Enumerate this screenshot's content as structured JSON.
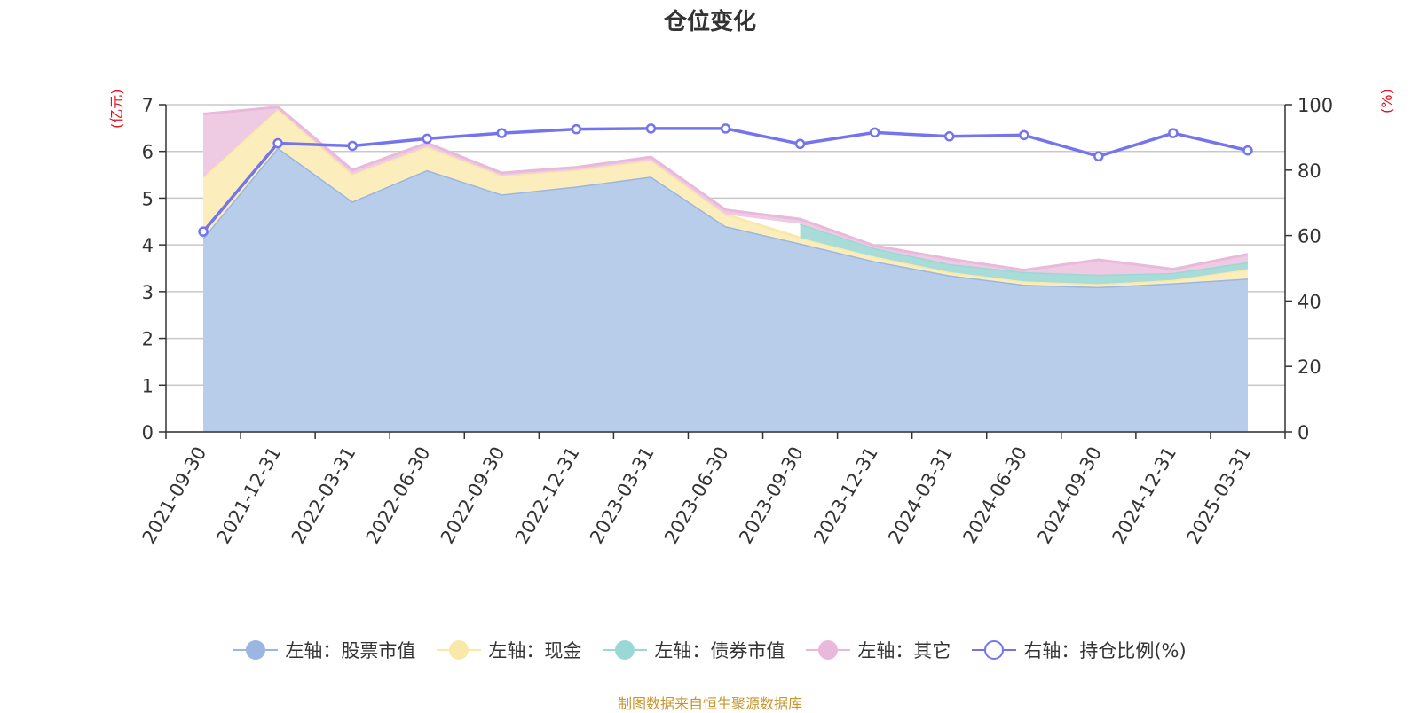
{
  "title": "仓位变化",
  "left_axis_unit": "(亿元)",
  "right_axis_unit": "(%)",
  "source_text": "制图数据来自恒生聚源数据库",
  "legend": [
    {
      "label": "左轴：股票市值",
      "color": "#9bb6e0",
      "marker": "filled-circle"
    },
    {
      "label": "左轴：现金",
      "color": "#fae8a8",
      "marker": "filled-circle"
    },
    {
      "label": "左轴：债券市值",
      "color": "#9ad8d6",
      "marker": "filled-circle"
    },
    {
      "label": "左轴：其它",
      "color": "#e9b9dc",
      "marker": "filled-circle"
    },
    {
      "label": "右轴：持仓比例(%)",
      "color": "#7474ee",
      "marker": "hollow-circle"
    }
  ],
  "chart_data": {
    "type": "area",
    "x": [
      "2021-09-30",
      "2021-12-31",
      "2022-03-31",
      "2022-06-30",
      "2022-09-30",
      "2022-12-31",
      "2023-03-31",
      "2023-06-30",
      "2023-09-30",
      "2023-12-31",
      "2024-03-31",
      "2024-06-30",
      "2024-09-30",
      "2024-12-31",
      "2025-03-31"
    ],
    "left_axis": {
      "ticks": [
        0,
        1,
        2,
        3,
        4,
        5,
        6,
        7
      ],
      "ylim": [
        0,
        7
      ]
    },
    "right_axis": {
      "ticks": [
        0,
        20,
        40,
        60,
        80,
        100
      ],
      "ylim": [
        0,
        100
      ]
    },
    "stacked_series": [
      {
        "name": "左轴：股票市值",
        "color": "#9bb6e0",
        "fill": "#b7cdea",
        "values": [
          4.15,
          6.08,
          4.93,
          5.6,
          5.08,
          5.25,
          5.46,
          4.4,
          4.03,
          3.65,
          3.35,
          3.15,
          3.1,
          3.18,
          3.28
        ]
      },
      {
        "name": "左轴：现金",
        "color": "#fae8a8",
        "fill": "#fcedbd",
        "values": [
          1.3,
          0.82,
          0.58,
          0.5,
          0.4,
          0.35,
          0.35,
          0.25,
          0.12,
          0.1,
          0.07,
          0.07,
          0.06,
          0.07,
          0.2
        ]
      },
      {
        "name": "左轴：债券市值",
        "color": "#9ad8d6",
        "fill": "#a8dcd8",
        "values": [
          null,
          null,
          null,
          null,
          null,
          null,
          null,
          null,
          0.3,
          0.18,
          0.17,
          0.2,
          0.2,
          0.15,
          0.15
        ]
      },
      {
        "name": "左轴：其它",
        "color": "#e9b9dc",
        "fill": "#eecbe3",
        "values": [
          1.35,
          0.05,
          0.09,
          0.08,
          0.06,
          0.06,
          0.07,
          0.1,
          0.1,
          0.05,
          0.11,
          0.04,
          0.32,
          0.08,
          0.17
        ]
      }
    ],
    "line_series": [
      {
        "name": "右轴：持仓比例(%)",
        "color": "#7474ee",
        "axis": "right",
        "values": [
          61.2,
          88.2,
          87.4,
          89.6,
          91.3,
          92.5,
          92.7,
          92.7,
          88.0,
          91.5,
          90.3,
          90.7,
          84.2,
          91.3,
          86.0
        ]
      }
    ],
    "grid": true
  }
}
